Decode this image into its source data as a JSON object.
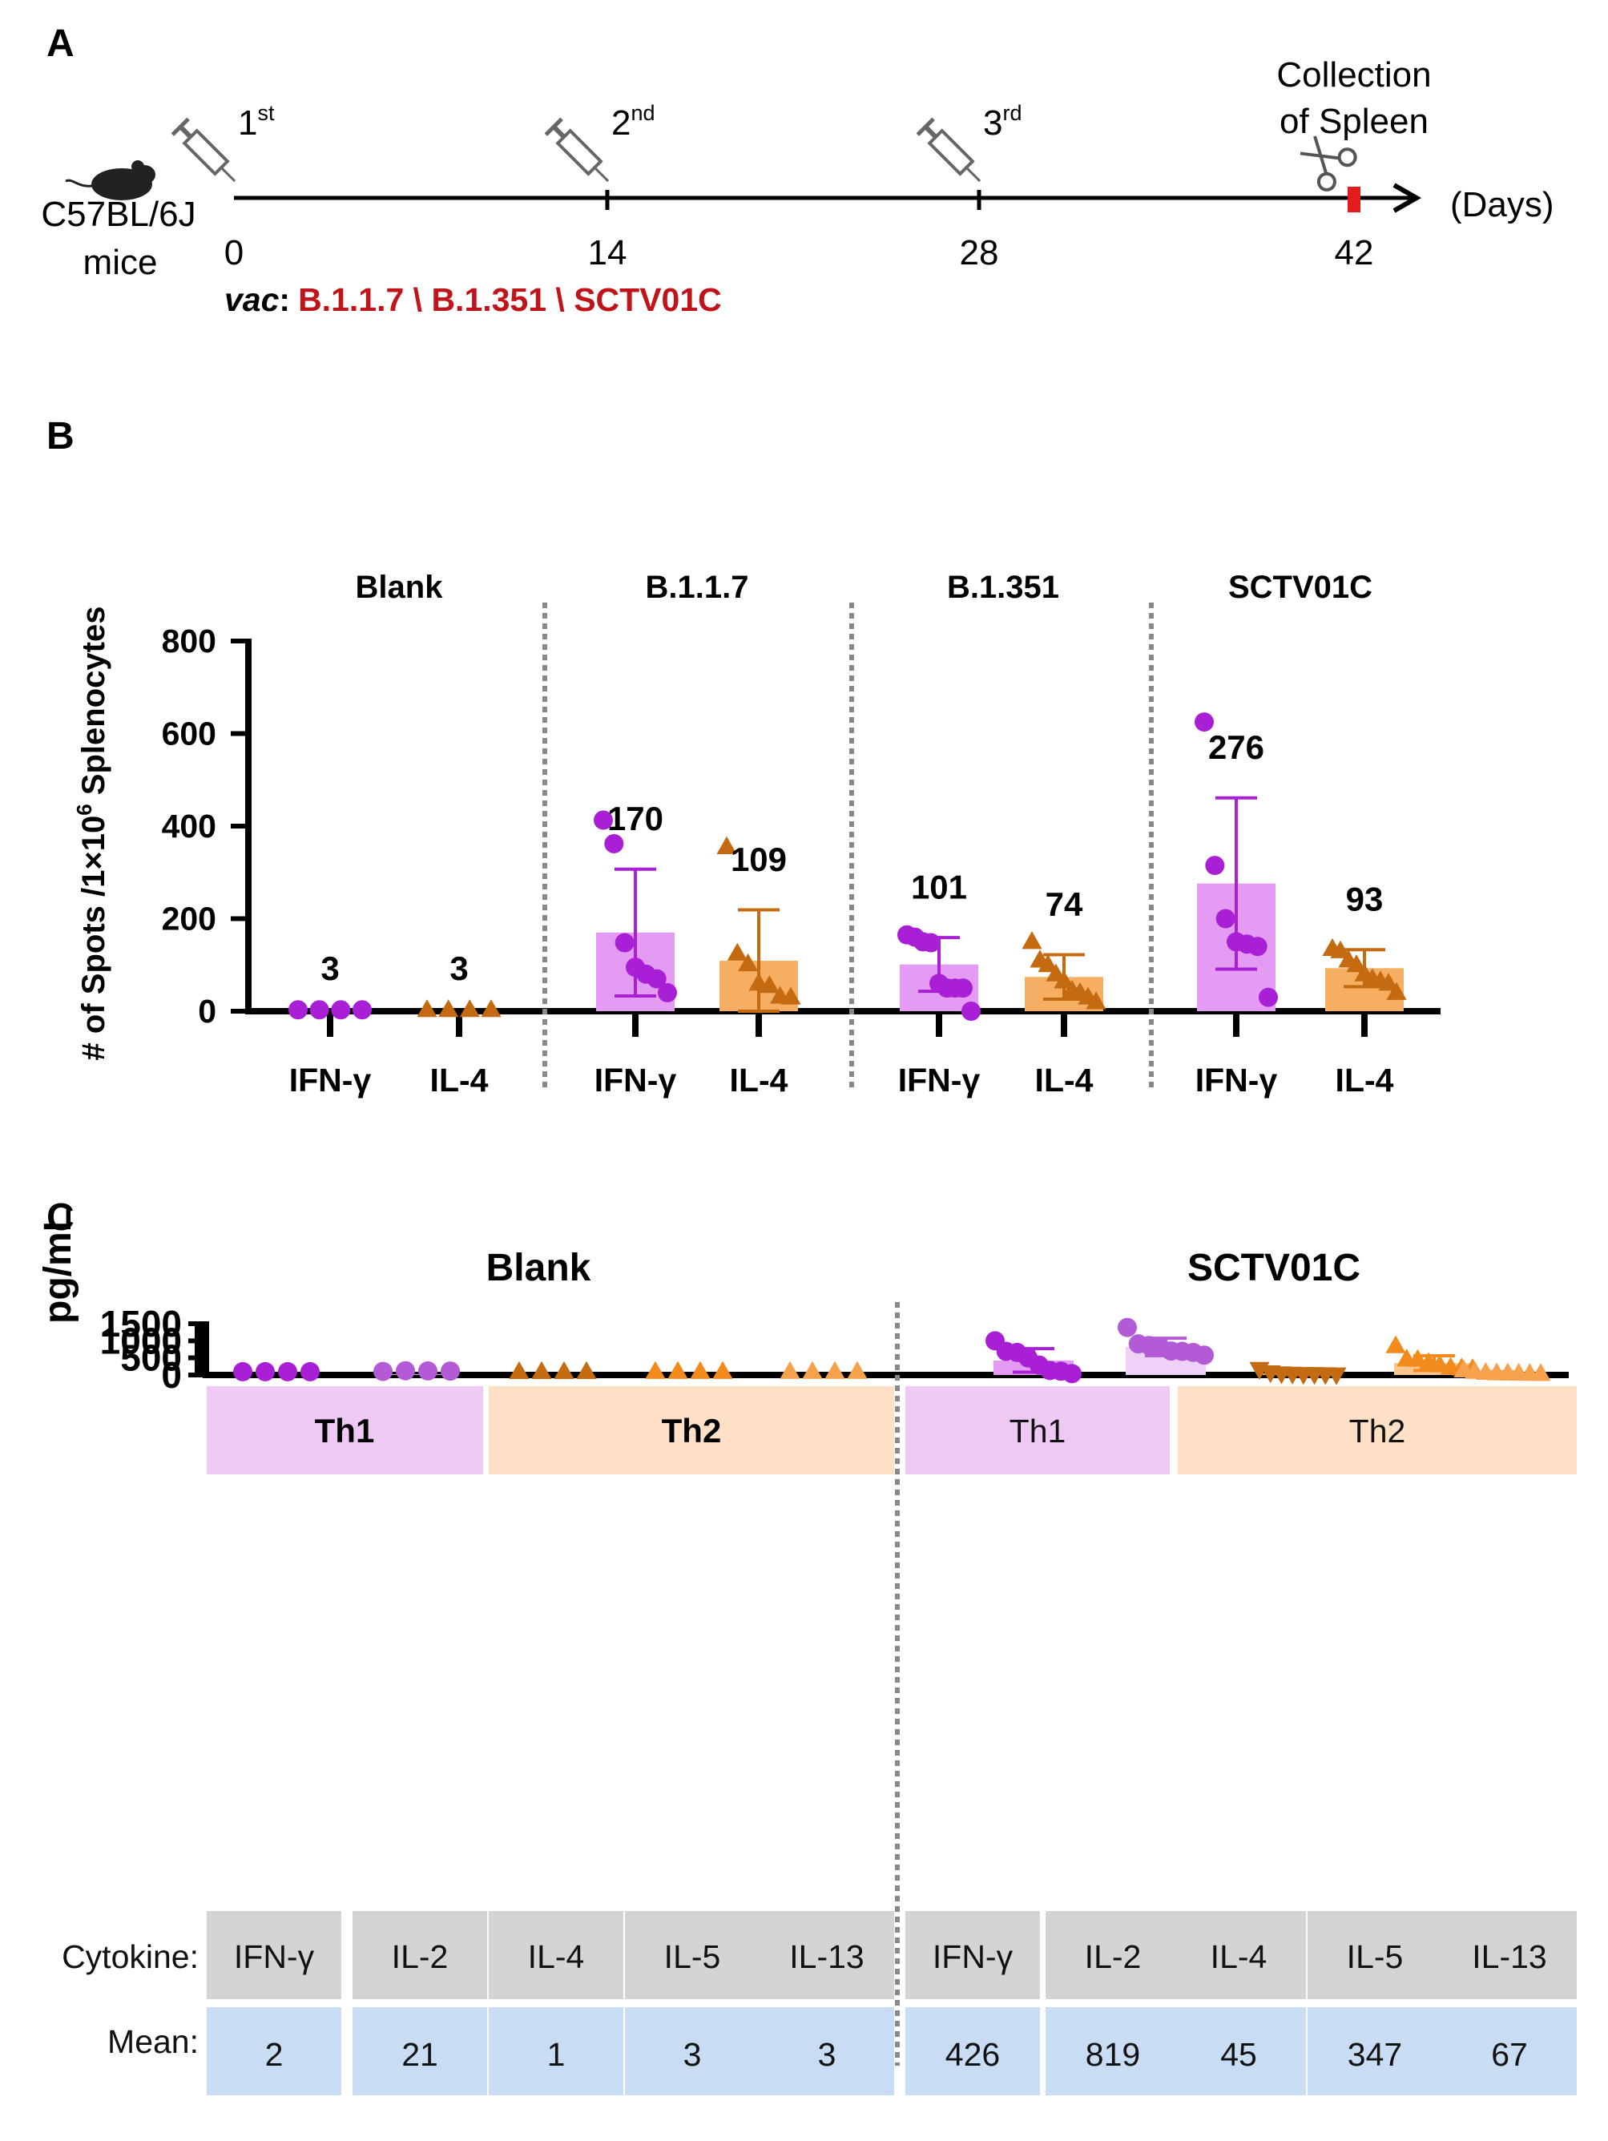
{
  "colors": {
    "ifn_g": "#a91fd6",
    "ifn_g_bar": "#e39bf3",
    "il_2": "#b35ad6",
    "il_2_bar": "#efd0f7",
    "il_4": "#c46a10",
    "il_4_bar": "#f6ae62",
    "il_5": "#f28a1c",
    "il_5_bar": "#fbc58e",
    "il_13": "#f6a24c",
    "il_13_bar": "#fcd5ab",
    "th1_cell": "#edc9f4",
    "th2_cell": "#fde0c5",
    "cytokine_cell": "#d4d4d4",
    "mean_cell": "#c8dcf3",
    "accent_red": "#c0141b"
  },
  "panel_a": {
    "letter": "A",
    "mouse_label_line1": "C57BL/6J",
    "mouse_label_line2": "mice",
    "doses": [
      {
        "base": "1",
        "sup": "st",
        "day": "0"
      },
      {
        "base": "2",
        "sup": "nd",
        "day": "14"
      },
      {
        "base": "3",
        "sup": "rd",
        "day": "28"
      }
    ],
    "collection_line1": "Collection",
    "collection_line2": "of Spleen",
    "collection_day": "42",
    "axis_unit": "(Days)",
    "vac_prefix": "vac",
    "vac_colon": ":",
    "vac_list": "B.1.1.7 \\ B.1.351 \\ SCTV01C"
  },
  "chart_data": [
    {
      "panel": "B",
      "type": "bar",
      "ylabel_pre": "# of Spots /1×10",
      "ylabel_sup": "6",
      "ylabel_post": " Splenocytes",
      "yticks": [
        "0",
        "200",
        "400",
        "600",
        "800"
      ],
      "ylim": [
        0,
        800
      ],
      "groups": [
        "Blank",
        "B.1.1.7",
        "B.1.351",
        "SCTV01C"
      ],
      "categories": [
        "IFN-γ",
        "IL-4"
      ],
      "series": [
        {
          "group": "Blank",
          "name": "IFN-γ",
          "mean": 3,
          "mean_label": "3",
          "sd": 0,
          "points": [
            3,
            3,
            3,
            3
          ]
        },
        {
          "group": "Blank",
          "name": "IL-4",
          "mean": 3,
          "mean_label": "3",
          "sd": 0,
          "points": [
            3,
            3,
            3,
            3
          ]
        },
        {
          "group": "B.1.1.7",
          "name": "IFN-γ",
          "mean": 170,
          "mean_label": "170",
          "sd": 137,
          "points": [
            413,
            362,
            148,
            95,
            80,
            70,
            40
          ]
        },
        {
          "group": "B.1.1.7",
          "name": "IL-4",
          "mean": 109,
          "mean_label": "109",
          "sd": 110,
          "points": [
            355,
            125,
            102,
            60,
            55,
            32,
            30
          ]
        },
        {
          "group": "B.1.351",
          "name": "IFN-γ",
          "mean": 101,
          "mean_label": "101",
          "sd": 58,
          "points": [
            165,
            160,
            150,
            148,
            60,
            50,
            50,
            50,
            0
          ]
        },
        {
          "group": "B.1.351",
          "name": "IL-4",
          "mean": 74,
          "mean_label": "74",
          "sd": 48,
          "points": [
            150,
            110,
            100,
            80,
            65,
            45,
            40,
            30,
            20
          ]
        },
        {
          "group": "SCTV01C",
          "name": "IFN-γ",
          "mean": 276,
          "mean_label": "276",
          "sd": 185,
          "points": [
            625,
            315,
            200,
            150,
            145,
            140,
            30
          ]
        },
        {
          "group": "SCTV01C",
          "name": "IL-4",
          "mean": 93,
          "mean_label": "93",
          "sd": 40,
          "points": [
            135,
            130,
            110,
            100,
            80,
            70,
            65,
            60,
            40
          ]
        }
      ]
    },
    {
      "panel": "C",
      "type": "bar",
      "ylabel": "pg/mL",
      "yticks": [
        "0",
        "500",
        "1000",
        "1500"
      ],
      "ylim": [
        0,
        1500
      ],
      "groups": [
        "Blank",
        "SCTV01C"
      ],
      "categories": [
        "IFN-γ",
        "IL-2",
        "IL-4",
        "IL-5",
        "IL-13"
      ],
      "series": [
        {
          "group": "Blank",
          "name": "IFN-γ",
          "mean": 2,
          "sd": 0,
          "points": [
            2,
            2,
            2,
            2
          ]
        },
        {
          "group": "Blank",
          "name": "IL-2",
          "mean": 21,
          "sd": 0,
          "points": [
            10,
            30,
            25,
            20
          ]
        },
        {
          "group": "Blank",
          "name": "IL-4",
          "mean": 1,
          "sd": 0,
          "points": [
            1,
            1,
            1,
            1
          ]
        },
        {
          "group": "Blank",
          "name": "IL-5",
          "mean": 3,
          "sd": 0,
          "points": [
            3,
            3,
            3,
            3
          ]
        },
        {
          "group": "Blank",
          "name": "IL-13",
          "mean": 3,
          "sd": 0,
          "points": [
            3,
            3,
            3,
            3
          ]
        },
        {
          "group": "SCTV01C",
          "name": "IFN-γ",
          "mean": 426,
          "sd": 345,
          "points": [
            1000,
            690,
            660,
            500,
            290,
            130,
            110,
            40
          ]
        },
        {
          "group": "SCTV01C",
          "name": "IL-2",
          "mean": 819,
          "sd": 255,
          "points": [
            1390,
            910,
            860,
            810,
            700,
            690,
            660,
            580
          ]
        },
        {
          "group": "SCTV01C",
          "name": "IL-4",
          "mean": 45,
          "sd": 35,
          "points": [
            170,
            70,
            40,
            30,
            20,
            20,
            15,
            10
          ]
        },
        {
          "group": "SCTV01C",
          "name": "IL-5",
          "mean": 347,
          "sd": 215,
          "points": [
            850,
            460,
            450,
            360,
            290,
            220,
            200,
            180
          ]
        },
        {
          "group": "SCTV01C",
          "name": "IL-13",
          "mean": 67,
          "sd": 30,
          "points": [
            140,
            100,
            70,
            55,
            50,
            45,
            40,
            35
          ]
        }
      ]
    }
  ],
  "panel_b": {
    "letter": "B"
  },
  "panel_c": {
    "letter": "C",
    "th1": "Th1",
    "th2": "Th2",
    "row_cytokine_label": "Cytokine:",
    "row_mean_label": "Mean:",
    "means": {
      "Blank": [
        "2",
        "21",
        "1",
        "3",
        "3"
      ],
      "SCTV01C": [
        "426",
        "819",
        "45",
        "347",
        "67"
      ]
    }
  }
}
